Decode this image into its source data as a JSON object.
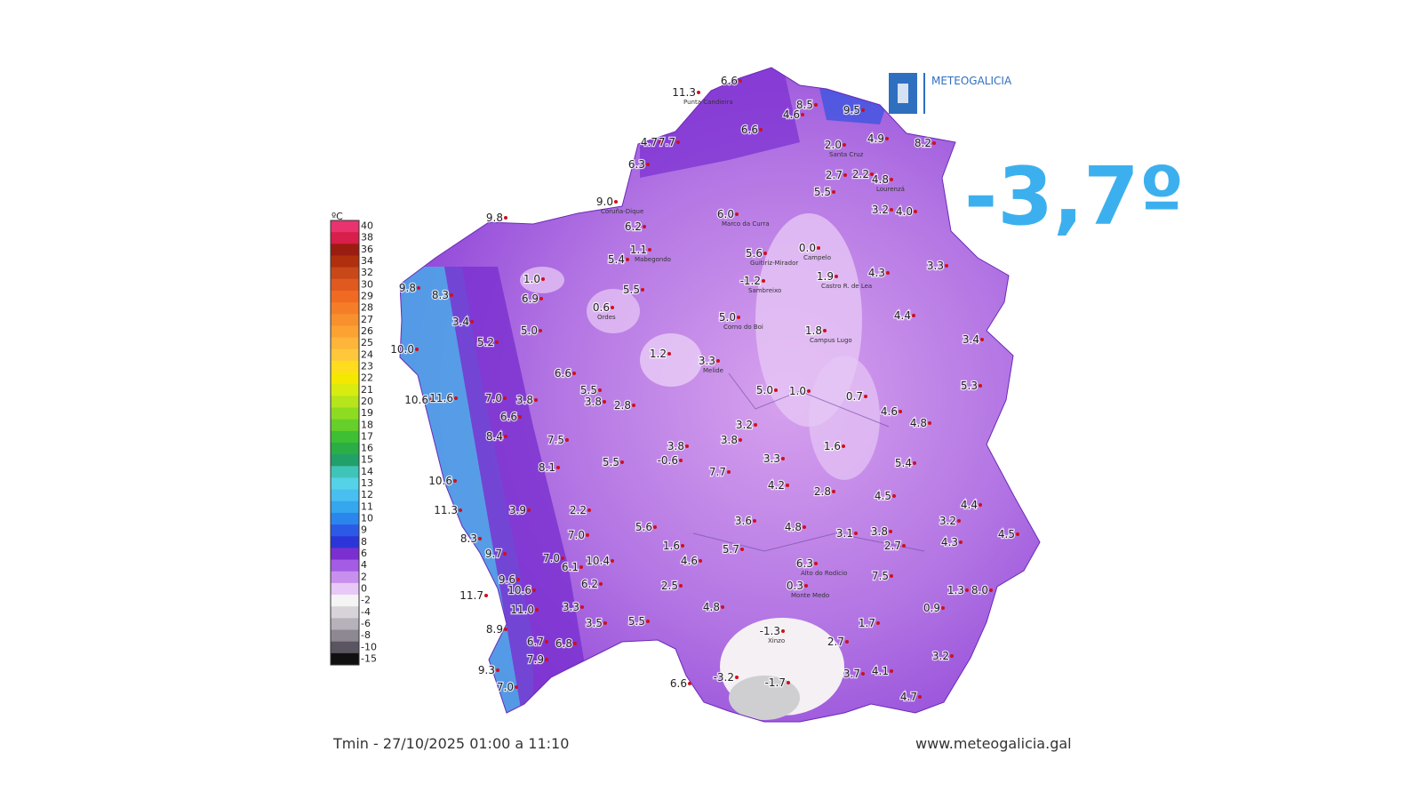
{
  "overlay": {
    "value": "-3,7º"
  },
  "logo": {
    "text": "METEOGALICIA"
  },
  "legend": {
    "unit": "ºC",
    "ticks": [
      40,
      38,
      36,
      34,
      32,
      30,
      29,
      28,
      27,
      26,
      25,
      24,
      23,
      22,
      21,
      20,
      19,
      18,
      17,
      16,
      15,
      14,
      13,
      12,
      11,
      10,
      9,
      8,
      6,
      4,
      2,
      0,
      -2,
      -4,
      -6,
      -8,
      -10,
      -15
    ]
  },
  "footer": {
    "caption": "Tmin - 27/10/2025 01:00 a 11:10",
    "url": "www.meteogalicia.gal"
  },
  "stations": [
    {
      "value": "11.3",
      "name": "Punta Candieira"
    },
    {
      "value": "6.6"
    },
    {
      "value": "8.5"
    },
    {
      "value": "9.5"
    },
    {
      "value": "4.6"
    },
    {
      "value": "6.6"
    },
    {
      "value": "4.7"
    },
    {
      "value": "7.7"
    },
    {
      "value": "2.0",
      "name": "Santa Cruz"
    },
    {
      "value": "4.9"
    },
    {
      "value": "8.2"
    },
    {
      "value": "6.3"
    },
    {
      "value": "2.7"
    },
    {
      "value": "2.2"
    },
    {
      "value": "4.8",
      "name": "Lourenzá"
    },
    {
      "value": "5.5"
    },
    {
      "value": "9.0",
      "name": "Coruña-Dique"
    },
    {
      "value": "9.8"
    },
    {
      "value": "6.0",
      "name": "Marco da Curra"
    },
    {
      "value": "3.2"
    },
    {
      "value": "4.0"
    },
    {
      "value": "6.2"
    },
    {
      "value": "1.1",
      "name": "Mabegondo"
    },
    {
      "value": "5.4"
    },
    {
      "value": "5.6",
      "name": "Guitiriz-Mirador"
    },
    {
      "value": "0.0",
      "name": "Campelo"
    },
    {
      "value": "3.3"
    },
    {
      "value": "1.0"
    },
    {
      "value": "1.9",
      "name": "Castro R. de Lea"
    },
    {
      "value": "4.3"
    },
    {
      "value": "9.8"
    },
    {
      "value": "8.3"
    },
    {
      "value": "5.5"
    },
    {
      "value": "-1.2",
      "name": "Sambreixo"
    },
    {
      "value": "6.9"
    },
    {
      "value": "0.6",
      "name": "Ordes"
    },
    {
      "value": "5.0",
      "name": "Corno do Boi"
    },
    {
      "value": "4.4"
    },
    {
      "value": "3.4"
    },
    {
      "value": "5.0"
    },
    {
      "value": "1.8",
      "name": "Campus Lugo"
    },
    {
      "value": "5.2"
    },
    {
      "value": "3.4"
    },
    {
      "value": "10.0"
    },
    {
      "value": "1.2"
    },
    {
      "value": "3.3",
      "name": "Melide"
    },
    {
      "value": "6.6"
    },
    {
      "value": "5.3"
    },
    {
      "value": "5.5"
    },
    {
      "value": "5.0"
    },
    {
      "value": "1.0"
    },
    {
      "value": "0.7"
    },
    {
      "value": "10.6"
    },
    {
      "value": "11.6"
    },
    {
      "value": "7.0"
    },
    {
      "value": "3.8"
    },
    {
      "value": "3.8"
    },
    {
      "value": "2.8"
    },
    {
      "value": "4.6"
    },
    {
      "value": "4.8"
    },
    {
      "value": "3.2"
    },
    {
      "value": "8.4"
    },
    {
      "value": "6.6"
    },
    {
      "value": "7.5"
    },
    {
      "value": "1.6"
    },
    {
      "value": "3.8"
    },
    {
      "value": "3.8"
    },
    {
      "value": "5.5"
    },
    {
      "value": "-0.6"
    },
    {
      "value": "3.3"
    },
    {
      "value": "5.4"
    },
    {
      "value": "8.1"
    },
    {
      "value": "7.7"
    },
    {
      "value": "10.6"
    },
    {
      "value": "4.2"
    },
    {
      "value": "2.8"
    },
    {
      "value": "4.5"
    },
    {
      "value": "11.3"
    },
    {
      "value": "3.9"
    },
    {
      "value": "2.2"
    },
    {
      "value": "3.2"
    },
    {
      "value": "4.4"
    },
    {
      "value": "3.6"
    },
    {
      "value": "4.8"
    },
    {
      "value": "5.6"
    },
    {
      "value": "3.1"
    },
    {
      "value": "3.8"
    },
    {
      "value": "8.3"
    },
    {
      "value": "7.0"
    },
    {
      "value": "2.7"
    },
    {
      "value": "4.3"
    },
    {
      "value": "4.5"
    },
    {
      "value": "9.7"
    },
    {
      "value": "1.6"
    },
    {
      "value": "5.7"
    },
    {
      "value": "4.6"
    },
    {
      "value": "7.0"
    },
    {
      "value": "6.1"
    },
    {
      "value": "10.4"
    },
    {
      "value": "6.3",
      "name": "Alto do Rodicio"
    },
    {
      "value": "9.6"
    },
    {
      "value": "7.5"
    },
    {
      "value": "6.2"
    },
    {
      "value": "2.5"
    },
    {
      "value": "0.3",
      "name": "Monte Medo"
    },
    {
      "value": "1.3"
    },
    {
      "value": "8.0"
    },
    {
      "value": "10.6"
    },
    {
      "value": "11.7"
    },
    {
      "value": "11.0"
    },
    {
      "value": "3.3"
    },
    {
      "value": "4.8"
    },
    {
      "value": "0.9"
    },
    {
      "value": "5.5"
    },
    {
      "value": "8.9"
    },
    {
      "value": "3.5"
    },
    {
      "value": "-1.3",
      "name": "Xinzo"
    },
    {
      "value": "1.7"
    },
    {
      "value": "6.7"
    },
    {
      "value": "6.8"
    },
    {
      "value": "2.7"
    },
    {
      "value": "7.9"
    },
    {
      "value": "3.2"
    },
    {
      "value": "9.3"
    },
    {
      "value": "3.7"
    },
    {
      "value": "4.1"
    },
    {
      "value": "-3.2"
    },
    {
      "value": "-1.7"
    },
    {
      "value": "6.6"
    },
    {
      "value": "7.0"
    },
    {
      "value": "4.7"
    }
  ]
}
